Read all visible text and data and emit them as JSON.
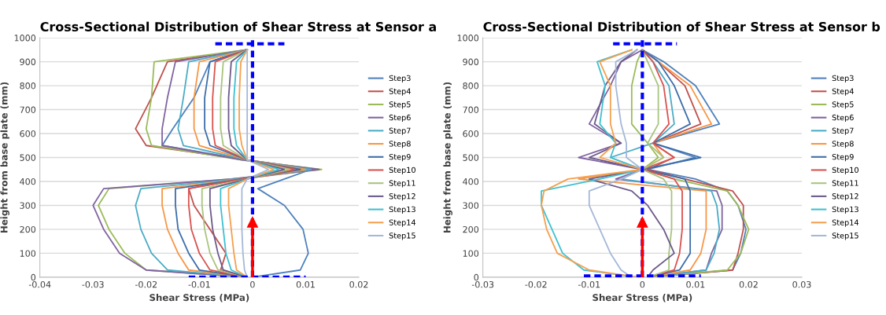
{
  "chart_data": [
    {
      "type": "line",
      "title": "Cross-Sectional Distribution of Shear Stress at Sensor a",
      "xlabel": "Shear Stress (MPa)",
      "ylabel": "Height from base plate (mm)",
      "xlim": [
        -0.04,
        0.02
      ],
      "xticks": [
        -0.04,
        -0.03,
        -0.02,
        -0.01,
        0,
        0.01,
        0.02
      ],
      "ylim": [
        0,
        1000
      ],
      "yticks": [
        0,
        100,
        200,
        300,
        400,
        500,
        600,
        700,
        800,
        900,
        1000
      ],
      "grid": "y",
      "legend": "right",
      "line_style": "solid",
      "ref_lines": [
        {
          "axis": "x",
          "value": 0,
          "color": "#0000ff",
          "line_style": "dashed"
        }
      ],
      "series": [
        {
          "name": "Step3",
          "color": "#4f81bd",
          "x": [
            0,
            0.009,
            0.0105,
            0.0095,
            0.006,
            0.001,
            0.006,
            0.011,
            -0.001,
            -0.017,
            -0.015,
            -0.011,
            -0.008,
            -0.001
          ],
          "values": [
            0,
            30,
            100,
            200,
            300,
            370,
            410,
            450,
            490,
            550,
            620,
            750,
            900,
            950
          ]
        },
        {
          "name": "Step4",
          "color": "#c0504d",
          "x": [
            -0.001,
            -0.006,
            -0.005,
            -0.008,
            -0.011,
            -0.012,
            -0.002,
            0.012,
            -0.001,
            -0.02,
            -0.022,
            -0.019,
            -0.016,
            -0.001
          ],
          "values": [
            0,
            30,
            100,
            200,
            300,
            370,
            410,
            450,
            490,
            550,
            620,
            750,
            900,
            950
          ]
        },
        {
          "name": "Step5",
          "color": "#9bbb59",
          "x": [
            -0.001,
            -0.02,
            -0.024,
            -0.027,
            -0.029,
            -0.027,
            -0.004,
            0.013,
            -0.002,
            -0.019,
            -0.02,
            -0.019,
            -0.0185,
            -0.001
          ],
          "values": [
            0,
            30,
            100,
            200,
            300,
            370,
            410,
            450,
            490,
            550,
            620,
            750,
            900,
            950
          ]
        },
        {
          "name": "Step6",
          "color": "#8064a2",
          "x": [
            -0.001,
            -0.02,
            -0.025,
            -0.028,
            -0.03,
            -0.028,
            -0.004,
            0.0125,
            -0.002,
            -0.017,
            -0.017,
            -0.016,
            -0.0145,
            -0.001
          ],
          "values": [
            0,
            30,
            100,
            200,
            300,
            370,
            410,
            450,
            490,
            550,
            620,
            750,
            900,
            950
          ]
        },
        {
          "name": "Step7",
          "color": "#4bacc6",
          "x": [
            -0.001,
            -0.016,
            -0.019,
            -0.021,
            -0.022,
            -0.021,
            -0.003,
            0.011,
            -0.001,
            -0.013,
            -0.014,
            -0.013,
            -0.012,
            -0.001
          ],
          "values": [
            0,
            30,
            100,
            200,
            300,
            370,
            410,
            450,
            490,
            550,
            620,
            750,
            900,
            950
          ]
        },
        {
          "name": "Step8",
          "color": "#f79646",
          "x": [
            -0.001,
            -0.012,
            -0.014,
            -0.016,
            -0.017,
            -0.017,
            -0.002,
            0.01,
            -0.001,
            -0.01,
            -0.011,
            -0.011,
            -0.01,
            -0.001
          ],
          "values": [
            0,
            30,
            100,
            200,
            300,
            370,
            410,
            450,
            490,
            550,
            620,
            750,
            900,
            950
          ]
        },
        {
          "name": "Step9",
          "color": "#3c6eaa",
          "x": [
            -0.001,
            -0.01,
            -0.012,
            -0.014,
            -0.0145,
            -0.0145,
            -0.002,
            0.009,
            -0.001,
            -0.008,
            -0.009,
            -0.009,
            -0.008,
            -0.001
          ],
          "values": [
            0,
            30,
            100,
            200,
            300,
            370,
            410,
            450,
            490,
            550,
            620,
            750,
            900,
            950
          ]
        },
        {
          "name": "Step10",
          "color": "#d9534f",
          "x": [
            -0.001,
            -0.008,
            -0.01,
            -0.0115,
            -0.012,
            -0.012,
            -0.002,
            0.008,
            -0.001,
            -0.007,
            -0.0075,
            -0.0075,
            -0.007,
            -0.001
          ],
          "values": [
            0,
            30,
            100,
            200,
            300,
            370,
            410,
            450,
            490,
            550,
            620,
            750,
            900,
            950
          ]
        },
        {
          "name": "Step11",
          "color": "#a9c47f",
          "x": [
            -0.001,
            -0.0065,
            -0.008,
            -0.009,
            -0.0095,
            -0.0095,
            -0.001,
            0.007,
            -0.001,
            -0.0055,
            -0.006,
            -0.006,
            -0.0055,
            -0.001
          ],
          "values": [
            0,
            30,
            100,
            200,
            300,
            370,
            410,
            450,
            490,
            550,
            620,
            750,
            900,
            950
          ]
        },
        {
          "name": "Step12",
          "color": "#6c5a8a",
          "x": [
            -0.001,
            -0.0055,
            -0.0065,
            -0.0075,
            -0.008,
            -0.008,
            -0.001,
            0.006,
            -0.001,
            -0.004,
            -0.0045,
            -0.0045,
            -0.004,
            -0.001
          ],
          "values": [
            0,
            30,
            100,
            200,
            300,
            370,
            410,
            450,
            490,
            550,
            620,
            750,
            900,
            950
          ]
        },
        {
          "name": "Step13",
          "color": "#3fc0d0",
          "x": [
            -0.001,
            -0.004,
            -0.005,
            -0.0055,
            -0.006,
            -0.006,
            -0.001,
            0.005,
            -0.001,
            -0.003,
            -0.0035,
            -0.0035,
            -0.003,
            -0.001
          ],
          "values": [
            0,
            30,
            100,
            200,
            300,
            370,
            410,
            450,
            490,
            550,
            620,
            750,
            900,
            950
          ]
        },
        {
          "name": "Step14",
          "color": "#f5a04e",
          "x": [
            -0.001,
            -0.003,
            -0.0035,
            -0.004,
            -0.0045,
            -0.0045,
            -0.001,
            0.004,
            -0.001,
            -0.002,
            -0.0025,
            -0.0025,
            -0.0022,
            -0.001
          ],
          "values": [
            0,
            30,
            100,
            200,
            300,
            370,
            410,
            450,
            490,
            550,
            620,
            750,
            900,
            950
          ]
        },
        {
          "name": "Step15",
          "color": "#a5b8d8",
          "x": [
            -0.001,
            -0.0015,
            -0.0018,
            -0.002,
            -0.002,
            -0.002,
            -0.001,
            0.003,
            -0.001,
            -0.001,
            -0.001,
            -0.001,
            -0.001,
            -0.001
          ],
          "values": [
            0,
            30,
            100,
            200,
            300,
            370,
            410,
            450,
            490,
            550,
            620,
            750,
            900,
            950
          ]
        },
        {
          "color": "#0000ff",
          "line_style": "dashed",
          "x": [
            -0.007,
            0.006
          ],
          "values": [
            975,
            975
          ]
        },
        {
          "color": "#0000ff",
          "line_style": "dashed",
          "x": [
            -0.012,
            0.01
          ],
          "values": [
            0,
            0
          ]
        },
        {
          "type": "line",
          "marker": "triangle",
          "color": "#ff0000",
          "x": [
            0,
            0
          ],
          "values": [
            0,
            230
          ]
        }
      ]
    },
    {
      "type": "line",
      "title": "Cross-Sectional Distribution of Shear Stress at Sensor b",
      "xlabel": "Shear Stress (MPa)",
      "ylabel": "Height from base plate (mm)",
      "xlim": [
        -0.03,
        0.03
      ],
      "xticks": [
        -0.03,
        -0.02,
        -0.01,
        0,
        0.01,
        0.02,
        0.03
      ],
      "ylim": [
        0,
        1000
      ],
      "yticks": [
        0,
        100,
        200,
        300,
        400,
        500,
        600,
        700,
        800,
        900,
        1000
      ],
      "grid": "y",
      "legend": "right",
      "line_style": "solid",
      "ref_lines": [
        {
          "axis": "x",
          "value": 0,
          "color": "#0000ff",
          "line_style": "dashed"
        }
      ],
      "series": [
        {
          "name": "Step3",
          "color": "#4f81bd",
          "x": [
            0.001,
            0.017,
            0.0185,
            0.0195,
            0.018,
            0.016,
            0.01,
            0.001,
            0.01,
            0.002,
            0.0145,
            0.01,
            0.004,
            0
          ],
          "values": [
            0,
            30,
            100,
            200,
            300,
            360,
            410,
            450,
            500,
            560,
            640,
            800,
            900,
            950
          ]
        },
        {
          "name": "Step4",
          "color": "#c0504d",
          "x": [
            0.001,
            0.017,
            0.018,
            0.019,
            0.019,
            0.017,
            0.008,
            0.001,
            0.006,
            0.002,
            0.011,
            0.008,
            0.003,
            0
          ],
          "values": [
            0,
            30,
            100,
            200,
            300,
            360,
            410,
            450,
            500,
            560,
            640,
            800,
            900,
            950
          ]
        },
        {
          "name": "Step5",
          "color": "#9bbb59",
          "x": [
            0.001,
            0.016,
            0.0185,
            0.02,
            0.018,
            0.016,
            0.006,
            0,
            0.003,
            0.001,
            -0.002,
            -0.002,
            -0.001,
            0
          ],
          "values": [
            0,
            30,
            100,
            200,
            300,
            360,
            410,
            450,
            500,
            560,
            640,
            800,
            900,
            950
          ]
        },
        {
          "name": "Step6",
          "color": "#8064a2",
          "x": [
            0.001,
            0.012,
            0.013,
            0.015,
            0.015,
            0.014,
            -0.005,
            0,
            -0.012,
            -0.004,
            -0.01,
            -0.006,
            -0.004,
            0
          ],
          "values": [
            0,
            30,
            100,
            200,
            300,
            360,
            410,
            450,
            500,
            560,
            640,
            800,
            900,
            950
          ]
        },
        {
          "name": "Step7",
          "color": "#4bacc6",
          "x": [
            0.001,
            0.012,
            0.0135,
            0.0145,
            0.014,
            0.013,
            -0.004,
            0,
            -0.006,
            0.002,
            0.006,
            0.005,
            0.002,
            0
          ],
          "values": [
            0,
            30,
            100,
            200,
            300,
            360,
            410,
            450,
            500,
            560,
            640,
            800,
            900,
            950
          ]
        },
        {
          "name": "Step8",
          "color": "#f79646",
          "x": [
            0.001,
            0.009,
            0.011,
            0.012,
            0.012,
            0.012,
            -0.012,
            0,
            0.004,
            0.002,
            0.013,
            0.009,
            0.003,
            0
          ],
          "values": [
            0,
            30,
            100,
            200,
            300,
            360,
            410,
            450,
            500,
            560,
            640,
            800,
            900,
            950
          ]
        },
        {
          "name": "Step9",
          "color": "#3c6eaa",
          "x": [
            0.001,
            0.007,
            0.009,
            0.009,
            0.009,
            0.009,
            0.008,
            0,
            0.011,
            0.002,
            0.009,
            0.006,
            0.003,
            0
          ],
          "values": [
            0,
            30,
            100,
            200,
            300,
            360,
            410,
            450,
            500,
            560,
            640,
            800,
            900,
            950
          ]
        },
        {
          "name": "Step10",
          "color": "#d9534f",
          "x": [
            0.001,
            0.006,
            0.007,
            0.0075,
            0.0075,
            0.0075,
            0.006,
            0,
            0.006,
            0.002,
            0.005,
            0.004,
            0.002,
            0
          ],
          "values": [
            0,
            30,
            100,
            200,
            300,
            360,
            410,
            450,
            500,
            560,
            640,
            800,
            900,
            950
          ]
        },
        {
          "name": "Step11",
          "color": "#a9c47f",
          "x": [
            0.001,
            0.005,
            0.005,
            0.0055,
            0.0055,
            0.0055,
            0.004,
            0,
            0.004,
            0.001,
            0.003,
            0.003,
            0.001,
            0
          ],
          "values": [
            0,
            30,
            100,
            200,
            300,
            360,
            410,
            450,
            500,
            560,
            640,
            800,
            900,
            950
          ]
        },
        {
          "name": "Step12",
          "color": "#6c5a8a",
          "x": [
            0.001,
            0.002,
            0.006,
            0.004,
            0.001,
            -0.002,
            -0.01,
            0,
            -0.01,
            -0.004,
            -0.009,
            -0.007,
            -0.004,
            -0.001
          ],
          "values": [
            0,
            30,
            100,
            200,
            300,
            360,
            410,
            450,
            500,
            560,
            640,
            800,
            900,
            950
          ]
        },
        {
          "name": "Step13",
          "color": "#3fc0d0",
          "x": [
            -0.001,
            -0.011,
            -0.015,
            -0.017,
            -0.019,
            -0.019,
            -0.008,
            0,
            -0.006,
            -0.005,
            -0.008,
            -0.007,
            -0.0085,
            -0.002
          ],
          "values": [
            0,
            30,
            100,
            200,
            300,
            360,
            410,
            450,
            500,
            560,
            640,
            800,
            900,
            950
          ]
        },
        {
          "name": "Step14",
          "color": "#f5a04e",
          "x": [
            -0.001,
            -0.01,
            -0.016,
            -0.018,
            -0.019,
            -0.0185,
            -0.014,
            0,
            -0.008,
            -0.005,
            -0.006,
            -0.006,
            -0.008,
            -0.002
          ],
          "values": [
            0,
            30,
            100,
            200,
            300,
            360,
            410,
            450,
            500,
            560,
            640,
            800,
            900,
            950
          ]
        },
        {
          "name": "Step15",
          "color": "#a5b8d8",
          "x": [
            -0.002,
            -0.004,
            -0.006,
            -0.008,
            -0.01,
            -0.01,
            -0.004,
            0,
            -0.003,
            -0.003,
            -0.004,
            -0.005,
            -0.005,
            -0.001
          ],
          "values": [
            0,
            30,
            100,
            200,
            300,
            360,
            410,
            450,
            500,
            560,
            640,
            800,
            900,
            950
          ]
        },
        {
          "color": "#0000ff",
          "line_style": "dashed",
          "x": [
            -0.0055,
            0.0065
          ],
          "values": [
            975,
            975
          ]
        },
        {
          "color": "#0000ff",
          "line_style": "dashed",
          "x": [
            -0.011,
            0.011
          ],
          "values": [
            5,
            5
          ]
        },
        {
          "type": "line",
          "marker": "triangle",
          "color": "#ff0000",
          "x": [
            0,
            0
          ],
          "values": [
            0,
            230
          ]
        }
      ]
    }
  ]
}
